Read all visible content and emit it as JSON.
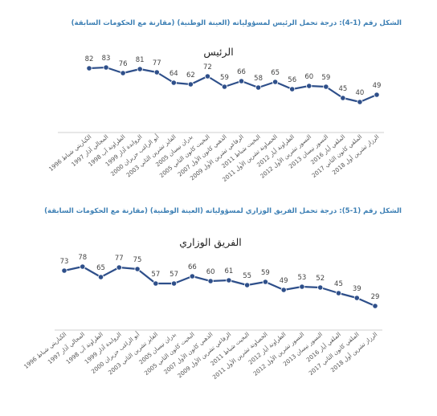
{
  "captions": {
    "chart1": "الشكل رقم (1-4): درجة تحمل الرئيس لمسؤولياته (العينة الوطنية) (مقارنة مع الحكومات السابقة)",
    "chart2": "الشكل رقم (1-5): درجة تحمل الفريق الوزاري لمسؤولياته (العينة الوطنية) (مقارنة مع الحكومات السابقة)"
  },
  "chart_data": [
    {
      "type": "line",
      "title": "الرئيس",
      "categories": [
        "الكباريتي شباط 1996",
        "المجالي آذار 1997",
        "الطراونة آب 1998",
        "الروابدة آذار 1999",
        "أبو الراغب حزيران 2000",
        "الفايز تشرين الثاني 2003",
        "بدران نيسان 2005",
        "البخيت كانون الثاني 2005",
        "الذهبي كانون الأول 2007",
        "الرفاعي تشرين الأول 2009",
        "البخيت شباط 2011",
        "الخصاونة تشرين الأول 2011",
        "الطراونة أيار 2012",
        "النسور تشرين الأول 2012",
        "النسور نيسان 2013",
        "الملقي أيار 2016",
        "الملقي كانون الثاني 2017",
        "الرزاز تشرين أول 2018"
      ],
      "values": [
        82,
        83,
        76,
        81,
        77,
        64,
        62,
        72,
        59,
        66,
        58,
        65,
        56,
        60,
        59,
        45,
        40,
        49
      ],
      "color": "#2e4f8a"
    },
    {
      "type": "line",
      "title": "الفريق الوزاري",
      "categories": [
        "الكباريتي شباط 1996",
        "المجالي آذار 1997",
        "الطراونة آب 1998",
        "الروابدة آذار 1999",
        "أبو الراغب حزيران 2000",
        "الفايز تشرين الثاني 2003",
        "بدران نيسان 2005",
        "البخيت كانون الثاني 2005",
        "الذهبي كانون الأول 2007",
        "الرفاعي تشرين الأول 2009",
        "البخيت شباط 2011",
        "الخصاونة تشرين الأول 2011",
        "الطراونة أيار 2012",
        "النسور تشرين الأول 2012",
        "النسور نيسان 2013",
        "الملقي أيار 2016",
        "الملقي كانون الثاني 2017",
        "الرزاز تشرين أول 2018"
      ],
      "values": [
        73,
        78,
        65,
        77,
        75,
        57,
        57,
        66,
        60,
        61,
        55,
        59,
        49,
        53,
        52,
        45,
        39,
        29
      ],
      "color": "#2e4f8a"
    }
  ]
}
